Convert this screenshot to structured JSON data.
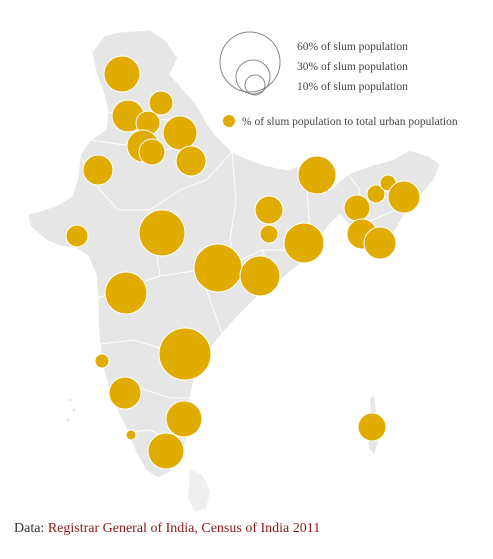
{
  "legend": {
    "size_labels": [
      "60% of slum population",
      "30% of slum population",
      "10% of slum population"
    ],
    "dot_label": "% of slum population to total urban population"
  },
  "source": {
    "prefix": "Data: ",
    "text": "Registrar General of India, Census of India 2011"
  },
  "colors": {
    "map_fill": "#e6e6e6",
    "border": "#ffffff",
    "bubble": "#e0ac00",
    "bubble_stroke": "#ffffff",
    "legend_circle": "#888888",
    "source_link": "#8b1a1a"
  }
}
